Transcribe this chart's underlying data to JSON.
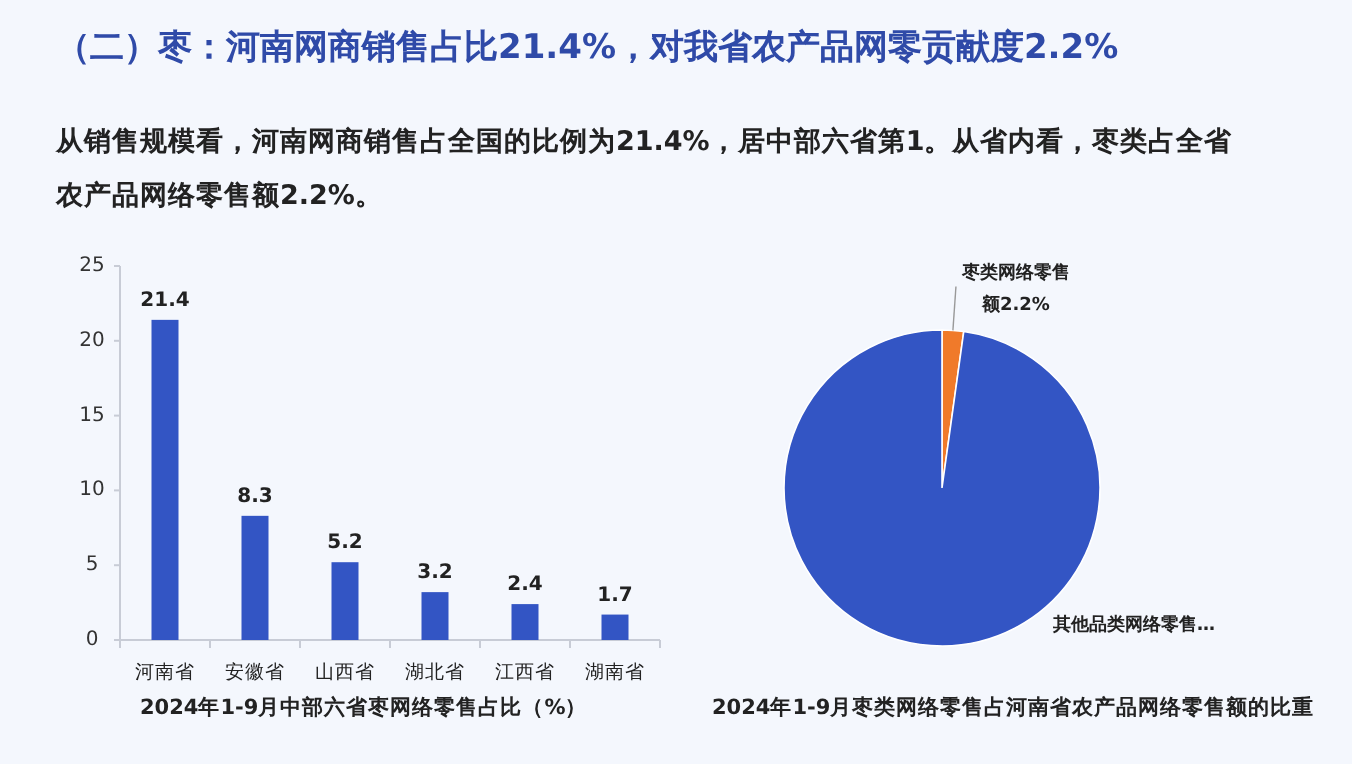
{
  "chart_data": [
    {
      "type": "other",
      "title": "（二）枣：河南网商销售占比21.4%，对我省农产品网零贡献度2.2%",
      "subtitle": "从销售规模看，河南网商销售占全国的比例为21.4%，居中部六省第1。从省内看，枣类占全省农产品网络零售额2.2%。"
    },
    {
      "type": "bar",
      "title": "2024年1-9月中部六省枣网络零售占比（%）",
      "categories": [
        "河南省",
        "安徽省",
        "山西省",
        "湖北省",
        "江西省",
        "湖南省"
      ],
      "values": [
        21.4,
        8.3,
        5.2,
        3.2,
        2.4,
        1.7
      ],
      "color": "#3355c4",
      "ylim": [
        0,
        25
      ],
      "yticks": [
        0,
        5,
        10,
        15,
        20,
        25
      ],
      "data_labels": true
    },
    {
      "type": "pie",
      "title": "2024年1-9月枣类网络零售占河南省农产品网络零售额的比重",
      "categories": [
        "枣类网络零售额",
        "其他品类网络零售…"
      ],
      "values": [
        2.2,
        97.8
      ],
      "colors": [
        "#f07a2a",
        "#3355c4"
      ],
      "value_labels": [
        "2.2%",
        null
      ]
    }
  ]
}
